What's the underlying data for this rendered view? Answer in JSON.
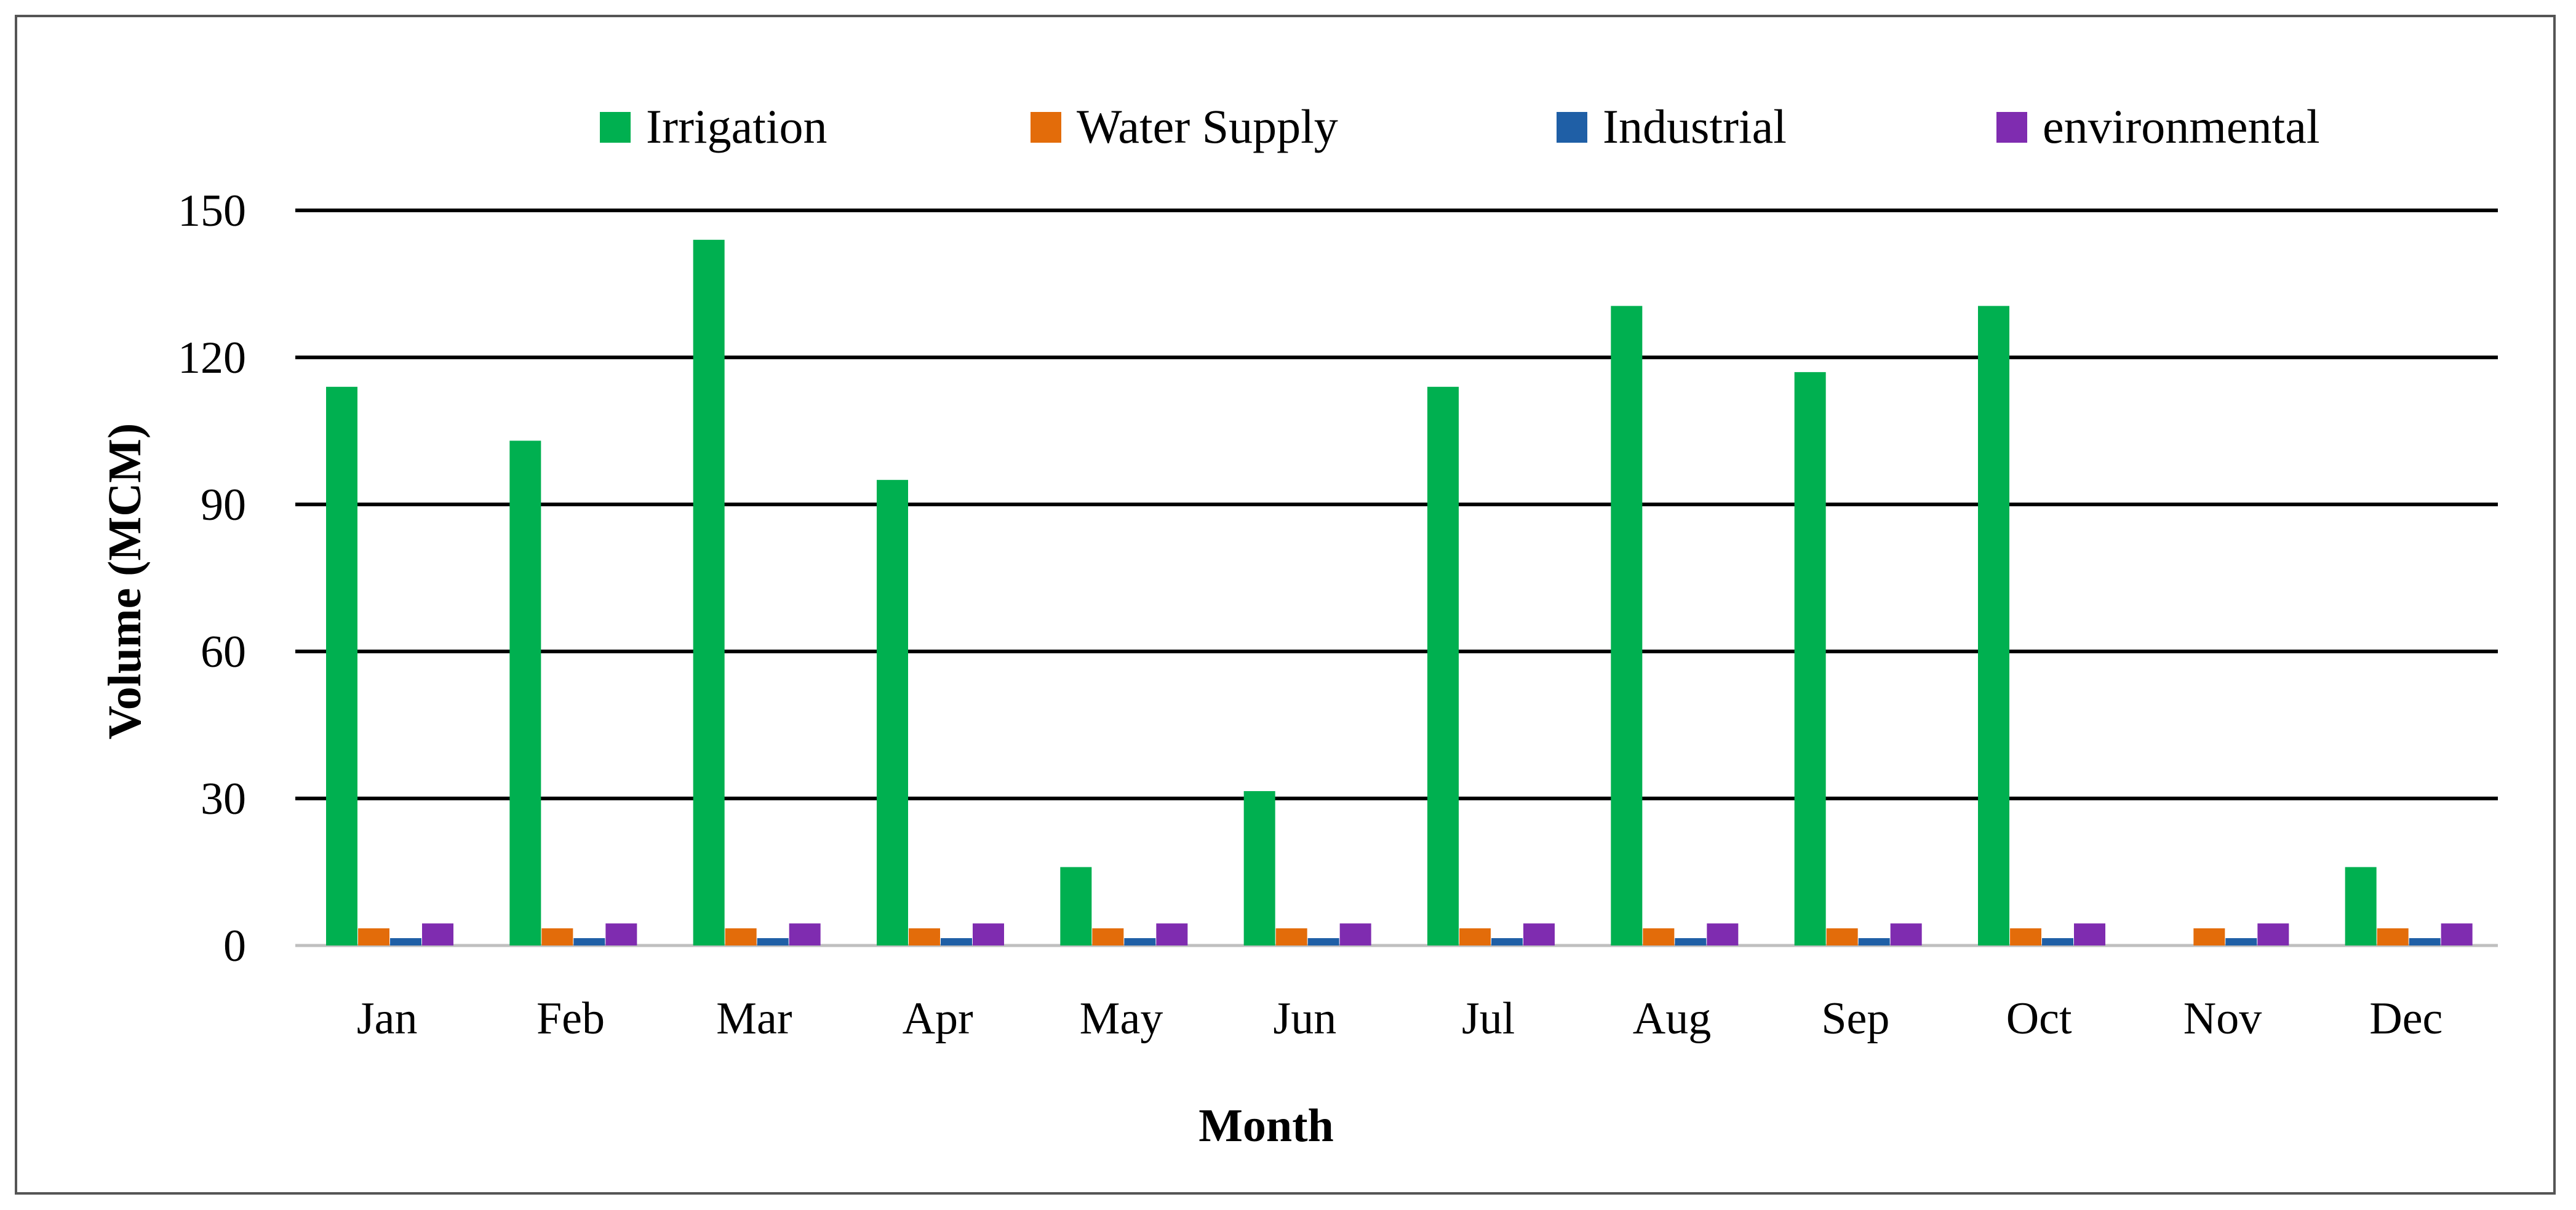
{
  "chart_data": {
    "type": "bar",
    "title": "",
    "xlabel": "Month",
    "ylabel": "Volume (MCM)",
    "ylim": [
      0,
      150
    ],
    "yticks": [
      "0",
      "30",
      "60",
      "90",
      "120",
      "150"
    ],
    "grid": true,
    "legend_position": "top",
    "categories": [
      "Jan",
      "Feb",
      "Mar",
      "Apr",
      "May",
      "Jun",
      "Jul",
      "Aug",
      "Sep",
      "Oct",
      "Nov",
      "Dec"
    ],
    "series": [
      {
        "name": "Irrigation",
        "color": "#00B050",
        "values": [
          114,
          103,
          144,
          95,
          16,
          31.5,
          114,
          130.5,
          117,
          130.5,
          0,
          16
        ]
      },
      {
        "name": "Water Supply",
        "color": "#E36C0A",
        "values": [
          3.5,
          3.5,
          3.5,
          3.5,
          3.5,
          3.5,
          3.5,
          3.5,
          3.5,
          3.5,
          3.5,
          3.5
        ]
      },
      {
        "name": "Industrial",
        "color": "#1F5FA6",
        "values": [
          1.5,
          1.5,
          1.5,
          1.5,
          1.5,
          1.5,
          1.5,
          1.5,
          1.5,
          1.5,
          1.5,
          1.5
        ]
      },
      {
        "name": "environmental",
        "color": "#7F2CB0",
        "values": [
          4.5,
          4.5,
          4.5,
          4.5,
          4.5,
          4.5,
          4.5,
          4.5,
          4.5,
          4.5,
          4.5,
          4.5
        ]
      }
    ]
  }
}
